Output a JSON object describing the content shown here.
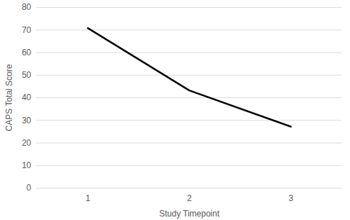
{
  "chart_data": {
    "type": "line",
    "x_label": "Study Timepoint",
    "y_label": "CAPS Total Score",
    "categories": [
      "1",
      "2",
      "3"
    ],
    "values": [
      70.8,
      43.2,
      27.2
    ],
    "color": "#000000",
    "ylim": [
      0,
      80
    ],
    "yticks": [
      0,
      10,
      20,
      30,
      40,
      50,
      60,
      70,
      80
    ],
    "grid": true
  }
}
